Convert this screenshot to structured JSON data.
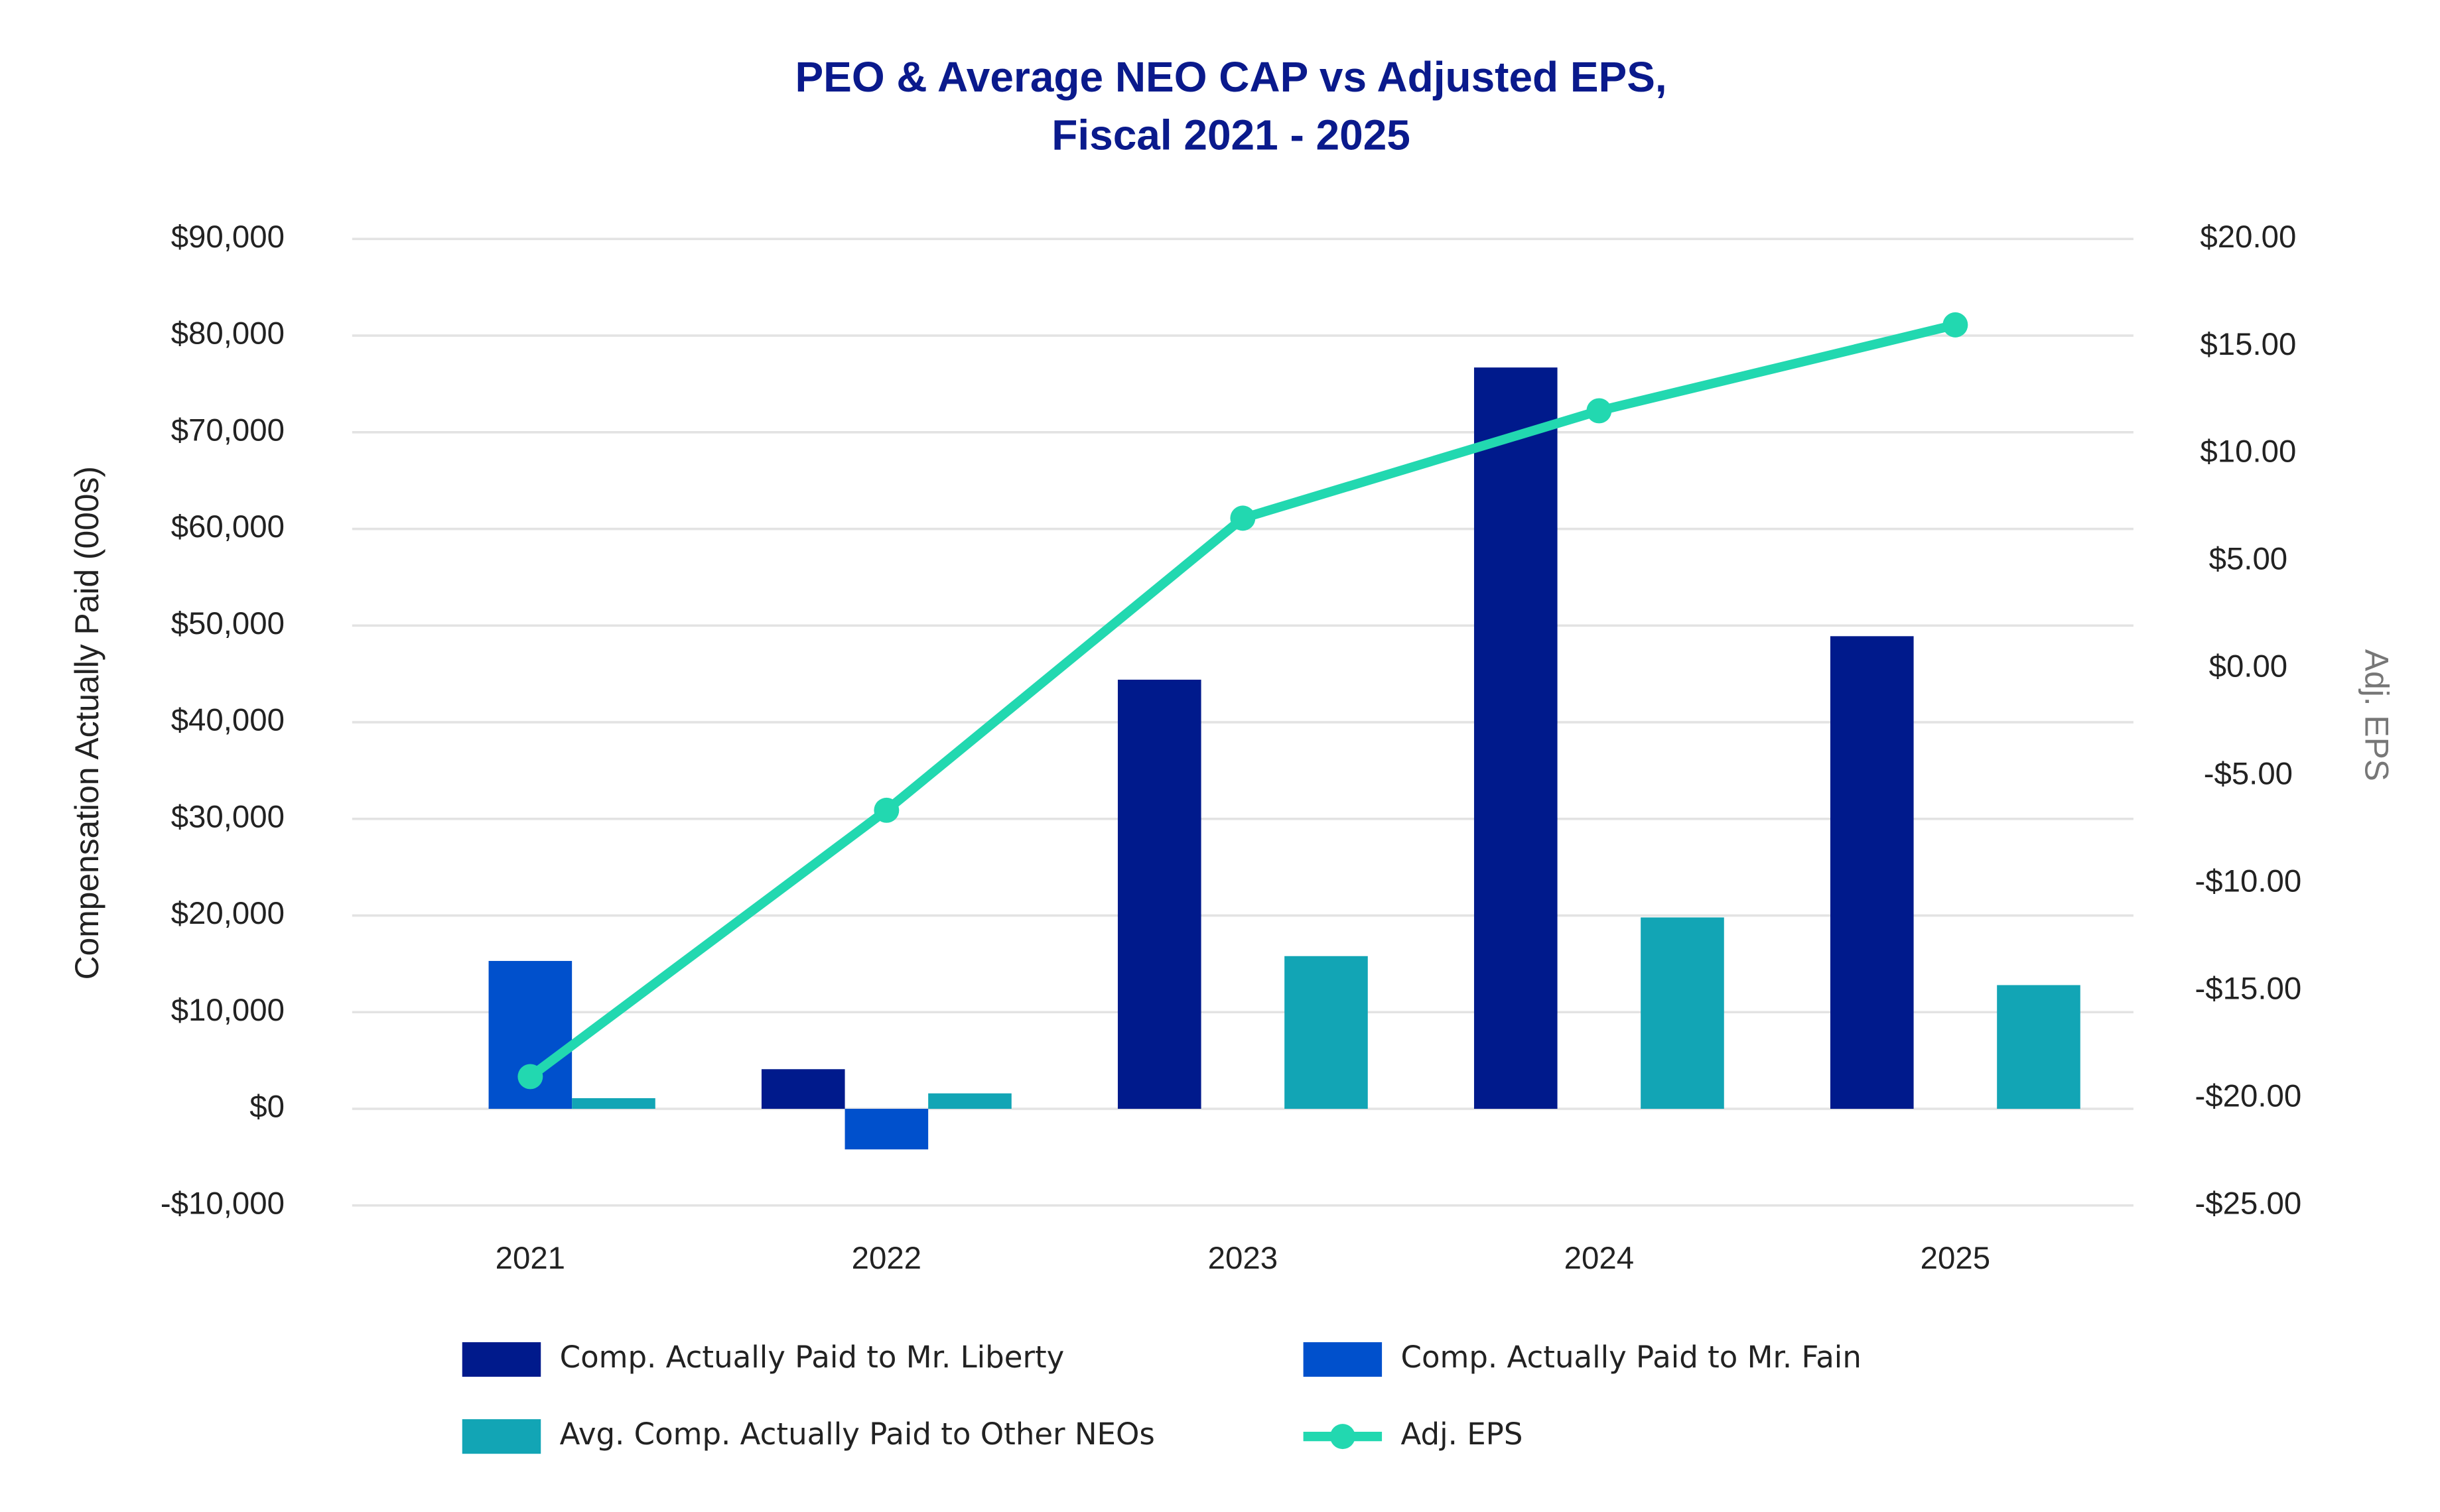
{
  "chart_data": {
    "type": "bar-line",
    "title": [
      "PEO & Average NEO CAP vs Adjusted EPS,",
      "Fiscal 2021 - 2025"
    ],
    "y_label": "Compensation Actually Paid (000s)",
    "y2_label": "Adj. EPS",
    "categories": [
      "2021",
      "2022",
      "2023",
      "2024",
      "2025"
    ],
    "series": [
      {
        "name": "Comp. Actually Paid to Mr. Liberty",
        "type": "bar",
        "color": "#001a8c",
        "values": [
          null,
          4100,
          44400,
          76700,
          48900
        ]
      },
      {
        "name": "Comp. Actually Paid to Mr. Fain",
        "type": "bar",
        "color": "#0050cc",
        "values": [
          15300,
          -4200,
          null,
          null,
          null
        ]
      },
      {
        "name": "Avg. Comp. Actually Paid to Other NEOs",
        "type": "bar",
        "color": "#12a5b5",
        "values": [
          1100,
          1600,
          15800,
          19800,
          12800
        ]
      },
      {
        "name": "Adj. EPS",
        "type": "line",
        "axis": "y2",
        "color": "#22d8b0",
        "values": [
          -19.0,
          -6.6,
          7.0,
          12.0,
          16.0
        ]
      }
    ],
    "ylim": [
      -10000,
      90000
    ],
    "yticks": [
      {
        "value": -10000,
        "label": "-$10,000"
      },
      {
        "value": 0,
        "label": "$0"
      },
      {
        "value": 10000,
        "label": "$10,000"
      },
      {
        "value": 20000,
        "label": "$20,000"
      },
      {
        "value": 30000,
        "label": "$30,000"
      },
      {
        "value": 40000,
        "label": "$40,000"
      },
      {
        "value": 50000,
        "label": "$50,000"
      },
      {
        "value": 60000,
        "label": "$60,000"
      },
      {
        "value": 70000,
        "label": "$70,000"
      },
      {
        "value": 80000,
        "label": "$80,000"
      },
      {
        "value": 90000,
        "label": "$90,000"
      }
    ],
    "y2lim": [
      -25,
      20
    ],
    "y2ticks": [
      {
        "value": -25,
        "label": "-$25.00"
      },
      {
        "value": -20,
        "label": "-$20.00"
      },
      {
        "value": -15,
        "label": "-$15.00"
      },
      {
        "value": -10,
        "label": "-$10.00"
      },
      {
        "value": -5,
        "label": "-$5.00"
      },
      {
        "value": 0,
        "label": "$0.00"
      },
      {
        "value": 5,
        "label": "$5.00"
      },
      {
        "value": 10,
        "label": "$10.00"
      },
      {
        "value": 15,
        "label": "$15.00"
      },
      {
        "value": 20,
        "label": "$20.00"
      }
    ],
    "grid": true,
    "legend": "bottom"
  }
}
